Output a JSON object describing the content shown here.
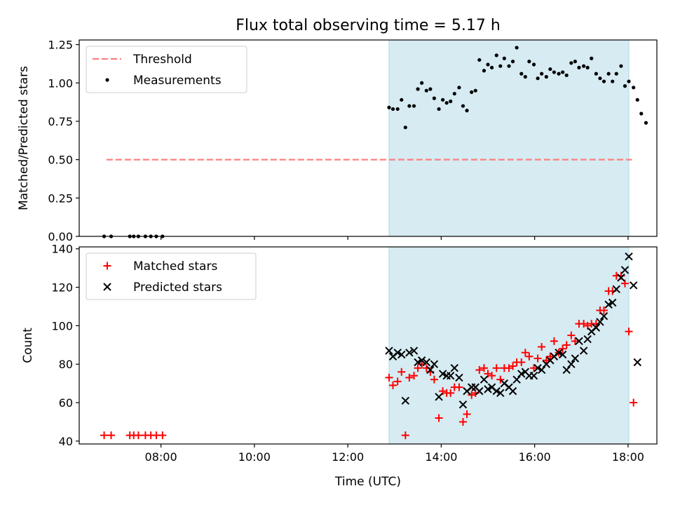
{
  "title": "Flux total observing time = 5.17 h",
  "xlabel": "Time (UTC)",
  "x_ticks": [
    "08:00",
    "10:00",
    "12:00",
    "14:00",
    "16:00",
    "18:00"
  ],
  "colors": {
    "threshold": "#ff7f7f",
    "measurement": "#000000",
    "matched": "#ff0000",
    "predicted": "#000000",
    "span": "#add8e6"
  },
  "chart_data": [
    {
      "type": "scatter",
      "ylabel": "Matched/Predicted stars",
      "xlim": [
        "06:15",
        "18:37"
      ],
      "ylim": [
        0,
        1.28
      ],
      "y_ticks": [
        "0.00",
        "0.25",
        "0.50",
        "0.75",
        "1.00",
        "1.25"
      ],
      "shaded_span": [
        "12:53",
        "18:01"
      ],
      "legend": {
        "placement": "upper-left",
        "entries": [
          "Threshold",
          "Measurements"
        ]
      },
      "threshold": {
        "name": "Threshold",
        "y": 0.5,
        "x_range": [
          "06:50",
          "18:05"
        ]
      },
      "series": [
        {
          "name": "Measurements",
          "points": [
            [
              "06:47",
              0
            ],
            [
              "06:56",
              0
            ],
            [
              "07:20",
              0
            ],
            [
              "07:25",
              0
            ],
            [
              "07:31",
              0
            ],
            [
              "07:40",
              0
            ],
            [
              "07:47",
              0
            ],
            [
              "07:54",
              0
            ],
            [
              "08:02",
              0
            ],
            [
              "12:53",
              0.84
            ],
            [
              "12:58",
              0.83
            ],
            [
              "13:04",
              0.83
            ],
            [
              "13:09",
              0.89
            ],
            [
              "13:14",
              0.71
            ],
            [
              "13:19",
              0.85
            ],
            [
              "13:25",
              0.85
            ],
            [
              "13:30",
              0.96
            ],
            [
              "13:35",
              1.0
            ],
            [
              "13:41",
              0.95
            ],
            [
              "13:46",
              0.96
            ],
            [
              "13:51",
              0.9
            ],
            [
              "13:57",
              0.83
            ],
            [
              "14:02",
              0.89
            ],
            [
              "14:07",
              0.87
            ],
            [
              "14:12",
              0.88
            ],
            [
              "14:17",
              0.93
            ],
            [
              "14:23",
              0.97
            ],
            [
              "14:28",
              0.85
            ],
            [
              "14:33",
              0.82
            ],
            [
              "14:39",
              0.94
            ],
            [
              "14:44",
              0.95
            ],
            [
              "14:49",
              1.15
            ],
            [
              "14:55",
              1.08
            ],
            [
              "15:00",
              1.12
            ],
            [
              "15:05",
              1.1
            ],
            [
              "15:11",
              1.18
            ],
            [
              "15:16",
              1.11
            ],
            [
              "15:21",
              1.16
            ],
            [
              "15:27",
              1.11
            ],
            [
              "15:32",
              1.14
            ],
            [
              "15:37",
              1.23
            ],
            [
              "15:43",
              1.06
            ],
            [
              "15:48",
              1.04
            ],
            [
              "15:53",
              1.14
            ],
            [
              "15:59",
              1.12
            ],
            [
              "16:04",
              1.03
            ],
            [
              "16:09",
              1.06
            ],
            [
              "16:15",
              1.04
            ],
            [
              "16:20",
              1.09
            ],
            [
              "16:25",
              1.07
            ],
            [
              "16:31",
              1.06
            ],
            [
              "16:36",
              1.07
            ],
            [
              "16:41",
              1.05
            ],
            [
              "16:47",
              1.13
            ],
            [
              "16:52",
              1.14
            ],
            [
              "16:57",
              1.1
            ],
            [
              "17:03",
              1.11
            ],
            [
              "17:08",
              1.1
            ],
            [
              "17:13",
              1.16
            ],
            [
              "17:19",
              1.06
            ],
            [
              "17:24",
              1.03
            ],
            [
              "17:29",
              1.01
            ],
            [
              "17:35",
              1.06
            ],
            [
              "17:40",
              1.01
            ],
            [
              "17:45",
              1.06
            ],
            [
              "17:51",
              1.11
            ],
            [
              "17:56",
              0.98
            ],
            [
              "18:01",
              1.01
            ],
            [
              "18:07",
              0.97
            ],
            [
              "18:12",
              0.89
            ],
            [
              "18:17",
              0.8
            ],
            [
              "18:23",
              0.74
            ]
          ]
        }
      ]
    },
    {
      "type": "scatter",
      "ylabel": "Count",
      "xlim": [
        "06:15",
        "18:37"
      ],
      "ylim": [
        38.5,
        141
      ],
      "y_ticks": [
        "40",
        "60",
        "80",
        "100",
        "120",
        "140"
      ],
      "shaded_span": [
        "12:53",
        "18:01"
      ],
      "legend": {
        "placement": "upper-left",
        "entries": [
          "Matched stars",
          "Predicted stars"
        ]
      },
      "series": [
        {
          "name": "Matched stars",
          "points": [
            [
              "06:47",
              43
            ],
            [
              "06:56",
              43
            ],
            [
              "07:20",
              43
            ],
            [
              "07:25",
              43
            ],
            [
              "07:31",
              43
            ],
            [
              "07:40",
              43
            ],
            [
              "07:47",
              43
            ],
            [
              "07:54",
              43
            ],
            [
              "08:02",
              43
            ],
            [
              "12:53",
              73
            ],
            [
              "12:58",
              69
            ],
            [
              "13:04",
              71
            ],
            [
              "13:09",
              76
            ],
            [
              "13:14",
              43
            ],
            [
              "13:19",
              73
            ],
            [
              "13:25",
              74
            ],
            [
              "13:30",
              78
            ],
            [
              "13:35",
              80
            ],
            [
              "13:41",
              78
            ],
            [
              "13:46",
              76
            ],
            [
              "13:51",
              72
            ],
            [
              "13:57",
              52
            ],
            [
              "14:02",
              66
            ],
            [
              "14:07",
              65
            ],
            [
              "14:12",
              65
            ],
            [
              "14:17",
              68
            ],
            [
              "14:23",
              68
            ],
            [
              "14:28",
              50
            ],
            [
              "14:33",
              54
            ],
            [
              "14:39",
              64
            ],
            [
              "14:44",
              65
            ],
            [
              "14:49",
              77
            ],
            [
              "14:55",
              78
            ],
            [
              "15:00",
              75
            ],
            [
              "15:05",
              74
            ],
            [
              "15:11",
              78
            ],
            [
              "15:16",
              72
            ],
            [
              "15:21",
              78
            ],
            [
              "15:27",
              78
            ],
            [
              "15:32",
              79
            ],
            [
              "15:37",
              81
            ],
            [
              "15:43",
              81
            ],
            [
              "15:48",
              86
            ],
            [
              "15:53",
              84
            ],
            [
              "15:59",
              78
            ],
            [
              "16:04",
              83
            ],
            [
              "16:09",
              89
            ],
            [
              "16:15",
              82
            ],
            [
              "16:20",
              84
            ],
            [
              "16:25",
              92
            ],
            [
              "16:31",
              86
            ],
            [
              "16:36",
              88
            ],
            [
              "16:41",
              90
            ],
            [
              "16:47",
              95
            ],
            [
              "16:52",
              92
            ],
            [
              "16:57",
              101
            ],
            [
              "17:03",
              101
            ],
            [
              "17:08",
              100
            ],
            [
              "17:13",
              101
            ],
            [
              "17:19",
              101
            ],
            [
              "17:24",
              108
            ],
            [
              "17:29",
              108
            ],
            [
              "17:35",
              118
            ],
            [
              "17:40",
              118
            ],
            [
              "17:45",
              126
            ],
            [
              "17:51",
              126
            ],
            [
              "17:56",
              122
            ],
            [
              "18:01",
              97
            ],
            [
              "18:07",
              60
            ]
          ]
        },
        {
          "name": "Predicted stars",
          "points": [
            [
              "12:53",
              87
            ],
            [
              "12:58",
              84
            ],
            [
              "13:04",
              86
            ],
            [
              "13:09",
              85
            ],
            [
              "13:14",
              61
            ],
            [
              "13:19",
              86
            ],
            [
              "13:25",
              87
            ],
            [
              "13:30",
              81
            ],
            [
              "13:35",
              82
            ],
            [
              "13:41",
              81
            ],
            [
              "13:46",
              77
            ],
            [
              "13:51",
              80
            ],
            [
              "13:57",
              63
            ],
            [
              "14:02",
              75
            ],
            [
              "14:07",
              74
            ],
            [
              "14:12",
              74
            ],
            [
              "14:17",
              78
            ],
            [
              "14:23",
              73
            ],
            [
              "14:28",
              59
            ],
            [
              "14:33",
              66
            ],
            [
              "14:39",
              68
            ],
            [
              "14:44",
              68
            ],
            [
              "14:49",
              66
            ],
            [
              "14:55",
              72
            ],
            [
              "15:00",
              67
            ],
            [
              "15:05",
              68
            ],
            [
              "15:11",
              66
            ],
            [
              "15:16",
              65
            ],
            [
              "15:21",
              70
            ],
            [
              "15:27",
              68
            ],
            [
              "15:32",
              66
            ],
            [
              "15:37",
              72
            ],
            [
              "15:43",
              75
            ],
            [
              "15:48",
              76
            ],
            [
              "15:53",
              74
            ],
            [
              "15:59",
              74
            ],
            [
              "16:04",
              78
            ],
            [
              "16:09",
              77
            ],
            [
              "16:15",
              80
            ],
            [
              "16:20",
              82
            ],
            [
              "16:25",
              84
            ],
            [
              "16:31",
              86
            ],
            [
              "16:36",
              85
            ],
            [
              "16:41",
              77
            ],
            [
              "16:47",
              80
            ],
            [
              "16:52",
              83
            ],
            [
              "16:57",
              92
            ],
            [
              "17:03",
              87
            ],
            [
              "17:08",
              93
            ],
            [
              "17:13",
              97
            ],
            [
              "17:19",
              99
            ],
            [
              "17:24",
              102
            ],
            [
              "17:29",
              105
            ],
            [
              "17:35",
              111
            ],
            [
              "17:40",
              112
            ],
            [
              "17:45",
              119
            ],
            [
              "17:51",
              125
            ],
            [
              "17:56",
              129
            ],
            [
              "18:01",
              136
            ],
            [
              "18:07",
              121
            ],
            [
              "18:12",
              81
            ]
          ]
        }
      ]
    }
  ]
}
